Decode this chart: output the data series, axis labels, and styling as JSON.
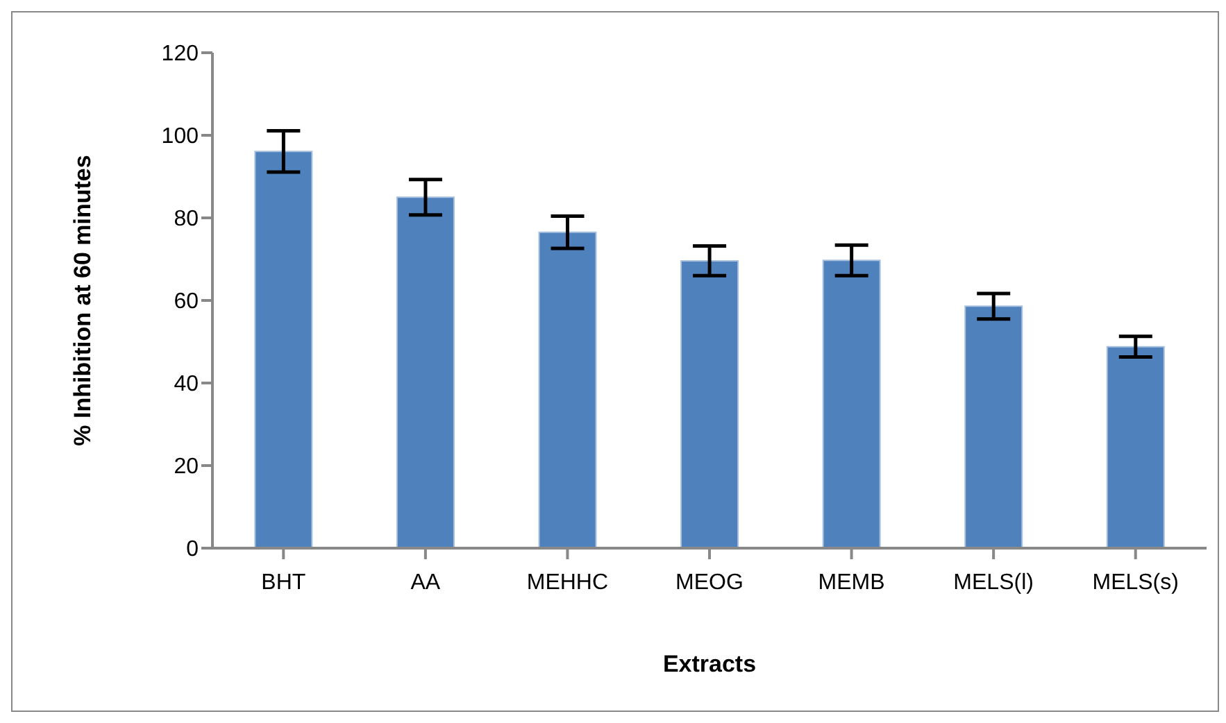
{
  "chart_data": {
    "type": "bar",
    "xlabel": "Extracts",
    "ylabel": "% Inhibition at 60 minutes",
    "categories": [
      "BHT",
      "AA",
      "MEHHC",
      "MEOG",
      "MEMB",
      "MELS(l)",
      "MELS(s)"
    ],
    "values": [
      96.1,
      85.0,
      76.5,
      69.6,
      69.7,
      58.6,
      48.8
    ],
    "errors": [
      5.0,
      4.3,
      3.9,
      3.6,
      3.7,
      3.1,
      2.5
    ],
    "color": "#4f81bd",
    "ylim": [
      0,
      120
    ],
    "yticks": [
      0,
      20,
      40,
      60,
      80,
      100,
      120
    ],
    "grid": false,
    "legend": false
  }
}
